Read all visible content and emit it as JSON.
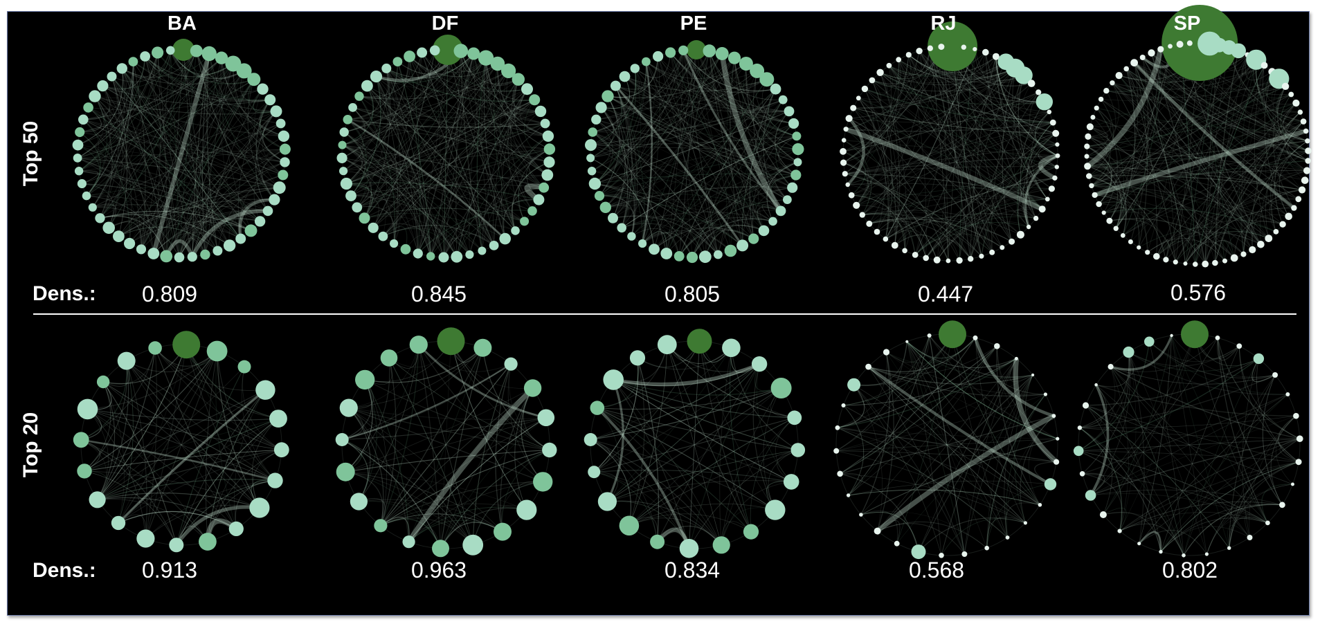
{
  "states": [
    "BA",
    "DF",
    "PE",
    "RJ",
    "SP"
  ],
  "row_labels": [
    "Top 50",
    "Top 20"
  ],
  "density_label": "Dens.:",
  "densities": {
    "top50": [
      "0.809",
      "0.845",
      "0.805",
      "0.447",
      "0.576"
    ],
    "top20": [
      "0.913",
      "0.963",
      "0.834",
      "0.568",
      "0.802"
    ]
  },
  "colors": {
    "background": "#000000",
    "node_light": "#a8dcc4",
    "node_mid": "#7fc49a",
    "node_dark": "#3e7a32",
    "edge": "#c8e6d4",
    "text": "#ffffff"
  }
}
